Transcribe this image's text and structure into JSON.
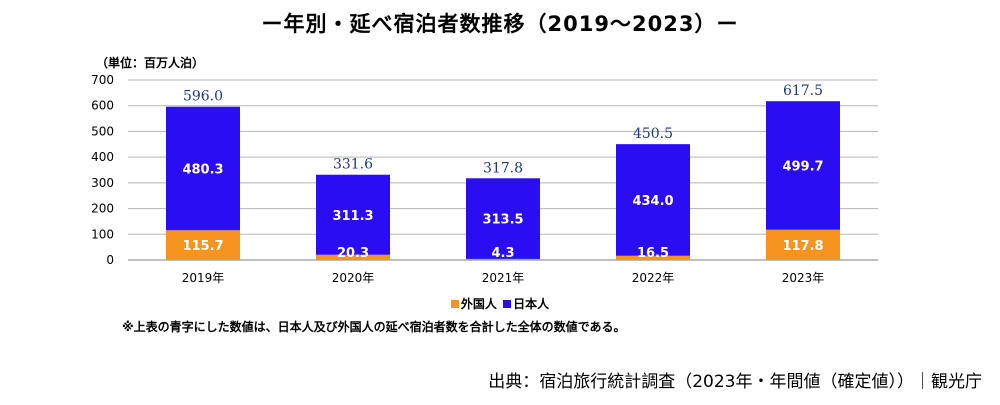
{
  "chart_data": {
    "type": "bar",
    "stacked": true,
    "title": "ー年別・延べ宿泊者数推移（2019～2023）ー",
    "unit_label": "（単位：百万人泊）",
    "categories": [
      "2019年",
      "2020年",
      "2021年",
      "2022年",
      "2023年"
    ],
    "series": [
      {
        "name": "外国人",
        "color": "#f5951f",
        "values": [
          115.7,
          20.3,
          4.3,
          16.5,
          117.8
        ],
        "labels": [
          "115.7",
          "20.3",
          "4.3",
          "16.5",
          "117.8"
        ]
      },
      {
        "name": "日本人",
        "color": "#2a0df2",
        "values": [
          480.3,
          311.3,
          313.5,
          434.0,
          499.7
        ],
        "labels": [
          "480.3",
          "311.3",
          "313.5",
          "434.0",
          "499.7"
        ]
      }
    ],
    "totals": [
      596.0,
      331.6,
      317.8,
      450.5,
      617.5
    ],
    "total_labels": [
      "596.0",
      "331.6",
      "317.8",
      "450.5",
      "617.5"
    ],
    "total_label_color": "#1f3a7a",
    "ylim": [
      0,
      700
    ],
    "yticks": [
      "0",
      "100",
      "200",
      "300",
      "400",
      "500",
      "600",
      "700"
    ],
    "grid": true,
    "legend": "bottom-center"
  },
  "note": "※上表の青字にした数値は、日本人及び外国人の延べ宿泊者数を合計した全体の数値である。",
  "source": "出典：宿泊旅行統計調査（2023年・年間値（確定値））｜観光庁"
}
